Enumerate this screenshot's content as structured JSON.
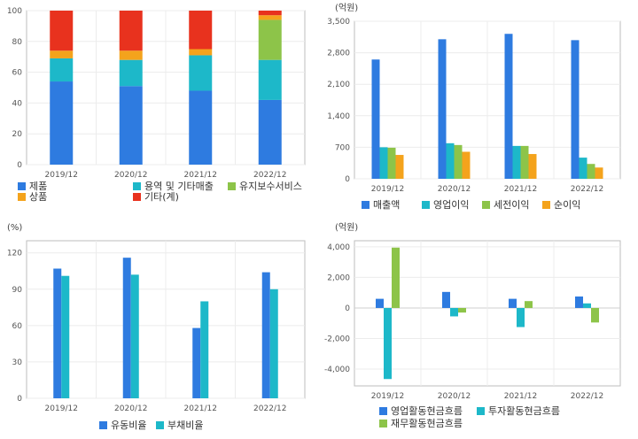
{
  "chart_data": [
    {
      "id": "sales-composition",
      "type": "bar",
      "stacked": true,
      "categories": [
        "2019/12",
        "2020/12",
        "2021/12",
        "2022/12"
      ],
      "unit": "",
      "ylim": [
        0,
        100
      ],
      "yticks": [
        0,
        20,
        40,
        60,
        80,
        100
      ],
      "ytick_labels": [
        "0",
        "20",
        "40",
        "60",
        "80",
        "100"
      ],
      "grid": true,
      "legend_position": "bottom",
      "series": [
        {
          "name": "제품",
          "color": "#2e7be0",
          "values": [
            54,
            51,
            48,
            42
          ]
        },
        {
          "name": "용역 및 기타매출",
          "color": "#1db8c9",
          "values": [
            15,
            17,
            23,
            26
          ]
        },
        {
          "name": "유지보수서비스",
          "color": "#8dc449",
          "values": [
            0,
            0,
            0,
            26
          ]
        },
        {
          "name": "상품",
          "color": "#f4a31c",
          "values": [
            5,
            6,
            4,
            3
          ]
        },
        {
          "name": "기타(계)",
          "color": "#e8321e",
          "values": [
            26,
            26,
            25,
            3
          ]
        }
      ]
    },
    {
      "id": "income-statement",
      "type": "bar",
      "stacked": false,
      "categories": [
        "2019/12",
        "2020/12",
        "2021/12",
        "2022/12"
      ],
      "unit": "(억원)",
      "ylim": [
        0,
        3500
      ],
      "yticks": [
        0,
        700,
        1400,
        2100,
        2800,
        3500
      ],
      "ytick_labels": [
        "0",
        "700",
        "1,400",
        "2,100",
        "2,800",
        "3,500"
      ],
      "grid": true,
      "legend_position": "bottom",
      "series": [
        {
          "name": "매출액",
          "color": "#2e7be0",
          "values": [
            2650,
            3100,
            3220,
            3080
          ]
        },
        {
          "name": "영업이익",
          "color": "#1db8c9",
          "values": [
            700,
            790,
            730,
            470
          ]
        },
        {
          "name": "세전이익",
          "color": "#8dc449",
          "values": [
            690,
            750,
            730,
            330
          ]
        },
        {
          "name": "순이익",
          "color": "#f4a31c",
          "values": [
            530,
            600,
            550,
            250
          ]
        }
      ]
    },
    {
      "id": "stability-ratios",
      "type": "bar",
      "stacked": false,
      "categories": [
        "2019/12",
        "2020/12",
        "2021/12",
        "2022/12"
      ],
      "unit": "(%)",
      "ylim": [
        0,
        130
      ],
      "yticks": [
        0,
        30,
        60,
        90,
        120
      ],
      "ytick_labels": [
        "0",
        "30",
        "60",
        "90",
        "120"
      ],
      "grid": true,
      "legend_position": "bottom",
      "series": [
        {
          "name": "유동비율",
          "color": "#2e7be0",
          "values": [
            107,
            116,
            58,
            104
          ]
        },
        {
          "name": "부채비율",
          "color": "#1db8c9",
          "values": [
            101,
            102,
            80,
            90
          ]
        }
      ]
    },
    {
      "id": "cash-flows",
      "type": "bar",
      "stacked": false,
      "categories": [
        "2019/12",
        "2020/12",
        "2021/12",
        "2022/12"
      ],
      "unit": "(억원)",
      "ylim": [
        -5100,
        4400
      ],
      "yticks": [
        -4000,
        -2000,
        0,
        2000,
        4000
      ],
      "ytick_labels": [
        "-4,000",
        "-2,000",
        "0",
        "2,000",
        "4,000"
      ],
      "grid": true,
      "legend_position": "bottom",
      "series": [
        {
          "name": "영업활동현금흐름",
          "color": "#2e7be0",
          "values": [
            600,
            1050,
            600,
            750
          ]
        },
        {
          "name": "투자활동현금흐름",
          "color": "#1db8c9",
          "values": [
            -4650,
            -550,
            -1250,
            300
          ]
        },
        {
          "name": "재무활동현금흐름",
          "color": "#8dc449",
          "values": [
            3950,
            -300,
            450,
            -950
          ]
        }
      ]
    }
  ]
}
